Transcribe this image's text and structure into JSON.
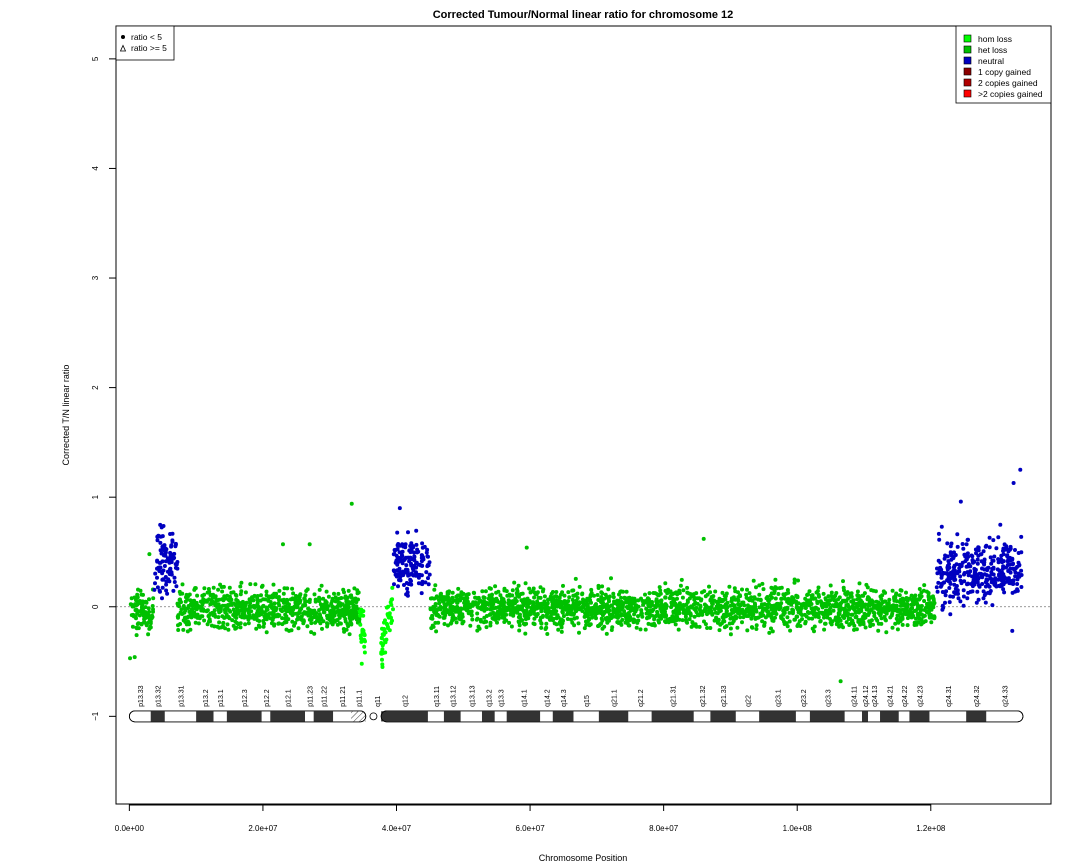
{
  "chart_data": {
    "type": "scatter",
    "title": "Corrected Tumour/Normal linear ratio for chromosome  12",
    "xlabel": "Chromosome Position",
    "ylabel": "Corrected T/N linear ratio",
    "xlim": [
      -2000000,
      138000000
    ],
    "ylim": [
      -1.8,
      5.3
    ],
    "x_ticks": [
      0,
      20000000,
      40000000,
      60000000,
      80000000,
      100000000,
      120000000
    ],
    "x_tick_labels": [
      "0.0e+00",
      "2.0e+07",
      "4.0e+07",
      "6.0e+07",
      "8.0e+07",
      "1.0e+08",
      "1.2e+08"
    ],
    "y_ticks": [
      -1,
      0,
      1,
      2,
      3,
      4,
      5
    ],
    "y_tick_labels": [
      "−1",
      "0",
      "1",
      "2",
      "3",
      "4",
      "5"
    ],
    "reference_line_y": 0,
    "shape_legend": {
      "position": "top-left",
      "entries": [
        {
          "label": "ratio < 5",
          "symbol": "filled-circle"
        },
        {
          "label": "ratio >= 5",
          "symbol": "open-triangle"
        }
      ]
    },
    "legend": {
      "position": "top-right",
      "entries": [
        {
          "label": "hom loss",
          "color": "#00ff00"
        },
        {
          "label": "het loss",
          "color": "#00c000"
        },
        {
          "label": "neutral",
          "color": "#0000c0"
        },
        {
          "label": "1 copy gained",
          "color": "#8b0000"
        },
        {
          "label": "2 copies gained",
          "color": "#b00000"
        },
        {
          "label": ">2 copies gained",
          "color": "#ff0000"
        }
      ]
    },
    "series": [
      {
        "state": "het loss",
        "color": "#00c000",
        "segments": [
          {
            "x_start": 200000,
            "x_end": 3600000,
            "mean": -0.05
          },
          {
            "x_start": 7200000,
            "x_end": 34500000,
            "mean": -0.02
          },
          {
            "x_start": 45100000,
            "x_end": 120600000,
            "mean": -0.01
          }
        ],
        "points": [
          {
            "x": 100000,
            "y": -0.47
          },
          {
            "x": 800000,
            "y": -0.46
          },
          {
            "x": 3000000,
            "y": 0.48
          },
          {
            "x": 33300000,
            "y": 0.94
          },
          {
            "x": 23000000,
            "y": 0.57
          },
          {
            "x": 27000000,
            "y": 0.57
          },
          {
            "x": 86000000,
            "y": 0.62
          },
          {
            "x": 59500000,
            "y": 0.54
          },
          {
            "x": 106500000,
            "y": -0.68
          }
        ]
      },
      {
        "state": "hom loss",
        "color": "#00ff00",
        "segments": [
          {
            "x_start": 34500000,
            "x_end": 35400000,
            "mean": -0.3
          },
          {
            "x_start": 37700000,
            "x_end": 39500000,
            "mean": -0.2
          }
        ],
        "points": [
          {
            "x": 34800000,
            "y": -0.52
          },
          {
            "x": 37900000,
            "y": -0.55
          }
        ]
      },
      {
        "state": "neutral",
        "color": "#0000c0",
        "segments": [
          {
            "x_start": 3700000,
            "x_end": 7200000,
            "mean": 0.4
          },
          {
            "x_start": 39500000,
            "x_end": 45000000,
            "mean": 0.4
          },
          {
            "x_start": 120900000,
            "x_end": 133700000,
            "mean": 0.32
          }
        ],
        "points": [
          {
            "x": 133400000,
            "y": 1.25
          },
          {
            "x": 132400000,
            "y": 1.13
          },
          {
            "x": 124500000,
            "y": 0.96
          },
          {
            "x": 40500000,
            "y": 0.9
          },
          {
            "x": 132200000,
            "y": -0.22
          }
        ]
      }
    ],
    "ideogram": {
      "y": -1,
      "centromere_x": [
        35400000,
        37700000
      ],
      "bands": [
        {
          "name": "p13.33",
          "start": 0,
          "end": 3200000,
          "stain": "white"
        },
        {
          "name": "p13.32",
          "start": 3200000,
          "end": 5300000,
          "stain": "dark"
        },
        {
          "name": "p13.31",
          "start": 5300000,
          "end": 10000000,
          "stain": "white"
        },
        {
          "name": "p13.2",
          "start": 10000000,
          "end": 12600000,
          "stain": "dark"
        },
        {
          "name": "p13.1",
          "start": 12600000,
          "end": 14600000,
          "stain": "white"
        },
        {
          "name": "p12.3",
          "start": 14600000,
          "end": 19800000,
          "stain": "dark"
        },
        {
          "name": "p12.2",
          "start": 19800000,
          "end": 21100000,
          "stain": "white"
        },
        {
          "name": "p12.1",
          "start": 21100000,
          "end": 26300000,
          "stain": "dark"
        },
        {
          "name": "p11.23",
          "start": 26300000,
          "end": 27600000,
          "stain": "white"
        },
        {
          "name": "p11.22",
          "start": 27600000,
          "end": 30500000,
          "stain": "dark"
        },
        {
          "name": "p11.21",
          "start": 30500000,
          "end": 33200000,
          "stain": "white"
        },
        {
          "name": "p11.1",
          "start": 33200000,
          "end": 35400000,
          "stain": "hatched"
        },
        {
          "name": "q11",
          "start": 37700000,
          "end": 36500000,
          "stain": "label-only"
        },
        {
          "name": "q12",
          "start": 37700000,
          "end": 44700000,
          "stain": "dark"
        },
        {
          "name": "q13.11",
          "start": 44700000,
          "end": 47100000,
          "stain": "white"
        },
        {
          "name": "q13.12",
          "start": 47100000,
          "end": 49600000,
          "stain": "dark"
        },
        {
          "name": "q13.13",
          "start": 49600000,
          "end": 52800000,
          "stain": "white"
        },
        {
          "name": "q13.2",
          "start": 52800000,
          "end": 54700000,
          "stain": "dark"
        },
        {
          "name": "q13.3",
          "start": 54700000,
          "end": 56500000,
          "stain": "white"
        },
        {
          "name": "q14.1",
          "start": 56500000,
          "end": 61500000,
          "stain": "dark"
        },
        {
          "name": "q14.2",
          "start": 61500000,
          "end": 63400000,
          "stain": "white"
        },
        {
          "name": "q14.3",
          "start": 63400000,
          "end": 66500000,
          "stain": "dark"
        },
        {
          "name": "q15",
          "start": 66500000,
          "end": 70300000,
          "stain": "white"
        },
        {
          "name": "q21.1",
          "start": 70300000,
          "end": 74700000,
          "stain": "dark"
        },
        {
          "name": "q21.2",
          "start": 74700000,
          "end": 78200000,
          "stain": "white"
        },
        {
          "name": "q21.31",
          "start": 78200000,
          "end": 84500000,
          "stain": "dark"
        },
        {
          "name": "q21.32",
          "start": 84500000,
          "end": 87000000,
          "stain": "white"
        },
        {
          "name": "q21.33",
          "start": 87000000,
          "end": 90800000,
          "stain": "dark"
        },
        {
          "name": "q22",
          "start": 90800000,
          "end": 94300000,
          "stain": "white"
        },
        {
          "name": "q23.1",
          "start": 94300000,
          "end": 99800000,
          "stain": "dark"
        },
        {
          "name": "q23.2",
          "start": 99800000,
          "end": 101900000,
          "stain": "white"
        },
        {
          "name": "q23.3",
          "start": 101900000,
          "end": 107100000,
          "stain": "dark"
        },
        {
          "name": "q24.11",
          "start": 107100000,
          "end": 109700000,
          "stain": "white"
        },
        {
          "name": "q24.12",
          "start": 109700000,
          "end": 110600000,
          "stain": "dark"
        },
        {
          "name": "q24.13",
          "start": 110600000,
          "end": 112400000,
          "stain": "white"
        },
        {
          "name": "q24.21",
          "start": 112400000,
          "end": 115200000,
          "stain": "dark"
        },
        {
          "name": "q24.22",
          "start": 115200000,
          "end": 116800000,
          "stain": "white"
        },
        {
          "name": "q24.23",
          "start": 116800000,
          "end": 119800000,
          "stain": "dark"
        },
        {
          "name": "q24.31",
          "start": 119800000,
          "end": 125300000,
          "stain": "white"
        },
        {
          "name": "q24.32",
          "start": 125300000,
          "end": 128300000,
          "stain": "dark"
        },
        {
          "name": "q24.33",
          "start": 128300000,
          "end": 133800000,
          "stain": "white"
        }
      ]
    }
  }
}
